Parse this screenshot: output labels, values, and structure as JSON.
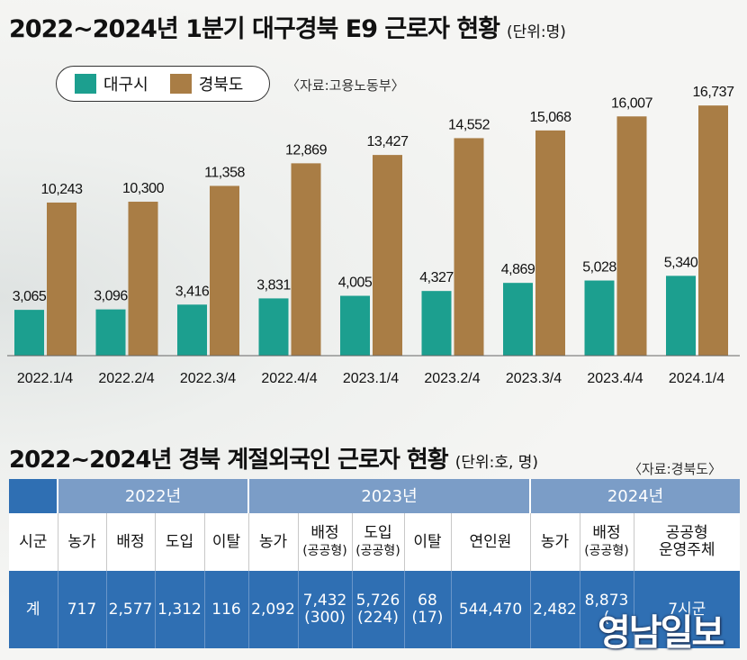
{
  "title1": "2022~2024년 1분기 대구경북 E9 근로자 현황",
  "unit1": "(단위:명)",
  "source1": "〈자료:고용노동부〉",
  "colors": {
    "daegu": "#1c9f8f",
    "gyeongbuk": "#a97d45",
    "header": "#7b9dc7",
    "dark": "#2f6fb3"
  },
  "chart_data": {
    "type": "bar",
    "title": "2022~2024년 1분기 대구경북 E9 근로자 현황",
    "unit": "명",
    "categories": [
      "2022.1/4",
      "2022.2/4",
      "2022.3/4",
      "2022.4/4",
      "2023.1/4",
      "2023.2/4",
      "2023.3/4",
      "2023.4/4",
      "2024.1/4"
    ],
    "series": [
      {
        "name": "대구시",
        "values": [
          3065,
          3096,
          3416,
          3831,
          4005,
          4327,
          4869,
          5028,
          5340
        ],
        "labels": [
          "3,065",
          "3,096",
          "3,416",
          "3,831",
          "4,005",
          "4,327",
          "4,869",
          "5,028",
          "5,340"
        ]
      },
      {
        "name": "경북도",
        "values": [
          10243,
          10300,
          11358,
          12869,
          13427,
          14552,
          15068,
          16007,
          16737
        ],
        "labels": [
          "10,243",
          "10,300",
          "11,358",
          "12,869",
          "13,427",
          "14,552",
          "15,068",
          "16,007",
          "16,737"
        ]
      }
    ],
    "legend": "top-left",
    "grid": false
  },
  "title2": "2022~2024년 경북 계절외국인 근로자 현황",
  "unit2": "(단위:호, 명)",
  "source2": "〈자료:경북도〉",
  "table": {
    "years": [
      "2022년",
      "2023년",
      "2024년"
    ],
    "headers": {
      "sigun": "시군",
      "y2022": [
        "농가",
        "배정",
        "도입",
        "이탈"
      ],
      "y2023": {
        "nongga": "농가",
        "baejeong": "배정",
        "baejeong_sub": "(공공형)",
        "doip": "도입",
        "doip_sub": "(공공형)",
        "ital": "이탈",
        "yeonin": "연인원"
      },
      "y2024": {
        "nongga": "농가",
        "baejeong": "배정",
        "baejeong_sub": "(공공형)",
        "unyeong1": "공공형",
        "unyeong2": "운영주체"
      }
    },
    "total_row": {
      "label": "계",
      "y2022": [
        "717",
        "2,577",
        "1,312",
        "116"
      ],
      "y2023": {
        "nongga": "2,092",
        "baejeong": "7,432",
        "baejeong_sub": "(300)",
        "doip": "5,726",
        "doip_sub": "(224)",
        "ital": "68",
        "ital_sub": "(17)",
        "yeonin": "544,470"
      },
      "y2024": {
        "nongga": "2,482",
        "baejeong": "8,873",
        "baejeong_sub": "(",
        "unyeong": "7시군"
      }
    }
  },
  "watermark": "영남일보"
}
